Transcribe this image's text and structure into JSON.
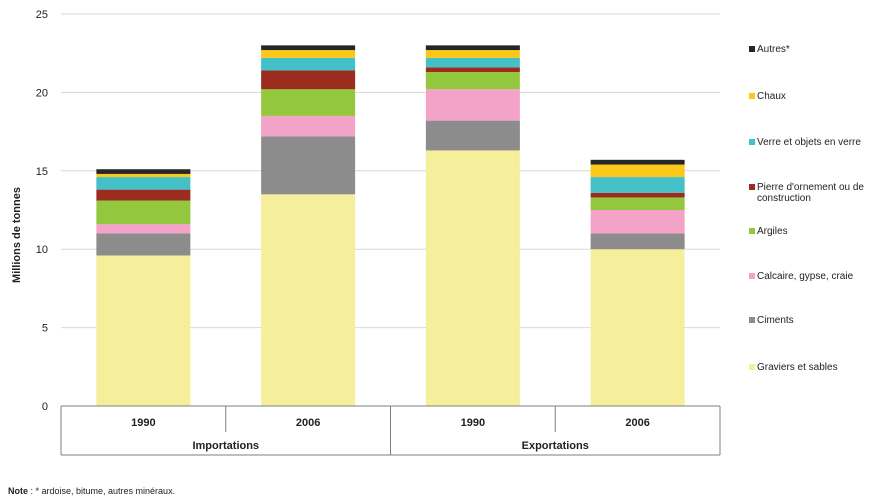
{
  "chart_data": {
    "type": "bar",
    "stacked": true,
    "ylabel": "Millions de tonnes",
    "ylim": [
      0,
      25
    ],
    "yticks": [
      0,
      5,
      10,
      15,
      20,
      25
    ],
    "grid": true,
    "legend_position": "right",
    "groups": [
      {
        "label": "Importations",
        "categories": [
          "1990",
          "2006"
        ]
      },
      {
        "label": "Exportations",
        "categories": [
          "1990",
          "2006"
        ]
      }
    ],
    "categories": [
      "1990",
      "2006",
      "1990",
      "2006"
    ],
    "series": [
      {
        "name": "Graviers et sables",
        "color": "#f5ef9c",
        "values": [
          9.6,
          13.5,
          16.3,
          10.0
        ]
      },
      {
        "name": "Ciments",
        "color": "#8c8c8c",
        "values": [
          1.4,
          3.7,
          1.9,
          1.0
        ]
      },
      {
        "name": "Calcaire, gypse, craie",
        "color": "#f3a3c8",
        "values": [
          0.6,
          1.3,
          2.0,
          1.5
        ]
      },
      {
        "name": "Argiles",
        "color": "#93c83e",
        "values": [
          1.5,
          1.7,
          1.1,
          0.8
        ]
      },
      {
        "name": "Pierre d'ornement ou de construction",
        "color": "#9b2d1f",
        "values": [
          0.7,
          1.2,
          0.3,
          0.3
        ]
      },
      {
        "name": "Verre et objets en verre",
        "color": "#43c0c8",
        "values": [
          0.8,
          0.8,
          0.6,
          1.0
        ]
      },
      {
        "name": "Chaux",
        "color": "#f9c81a",
        "values": [
          0.2,
          0.5,
          0.5,
          0.8
        ]
      },
      {
        "name": "Autres*",
        "color": "#262626",
        "values": [
          0.3,
          0.3,
          0.3,
          0.3
        ]
      }
    ]
  },
  "note": {
    "label": "Note",
    "text": " : * ardoise, bitume, autres minéraux."
  }
}
